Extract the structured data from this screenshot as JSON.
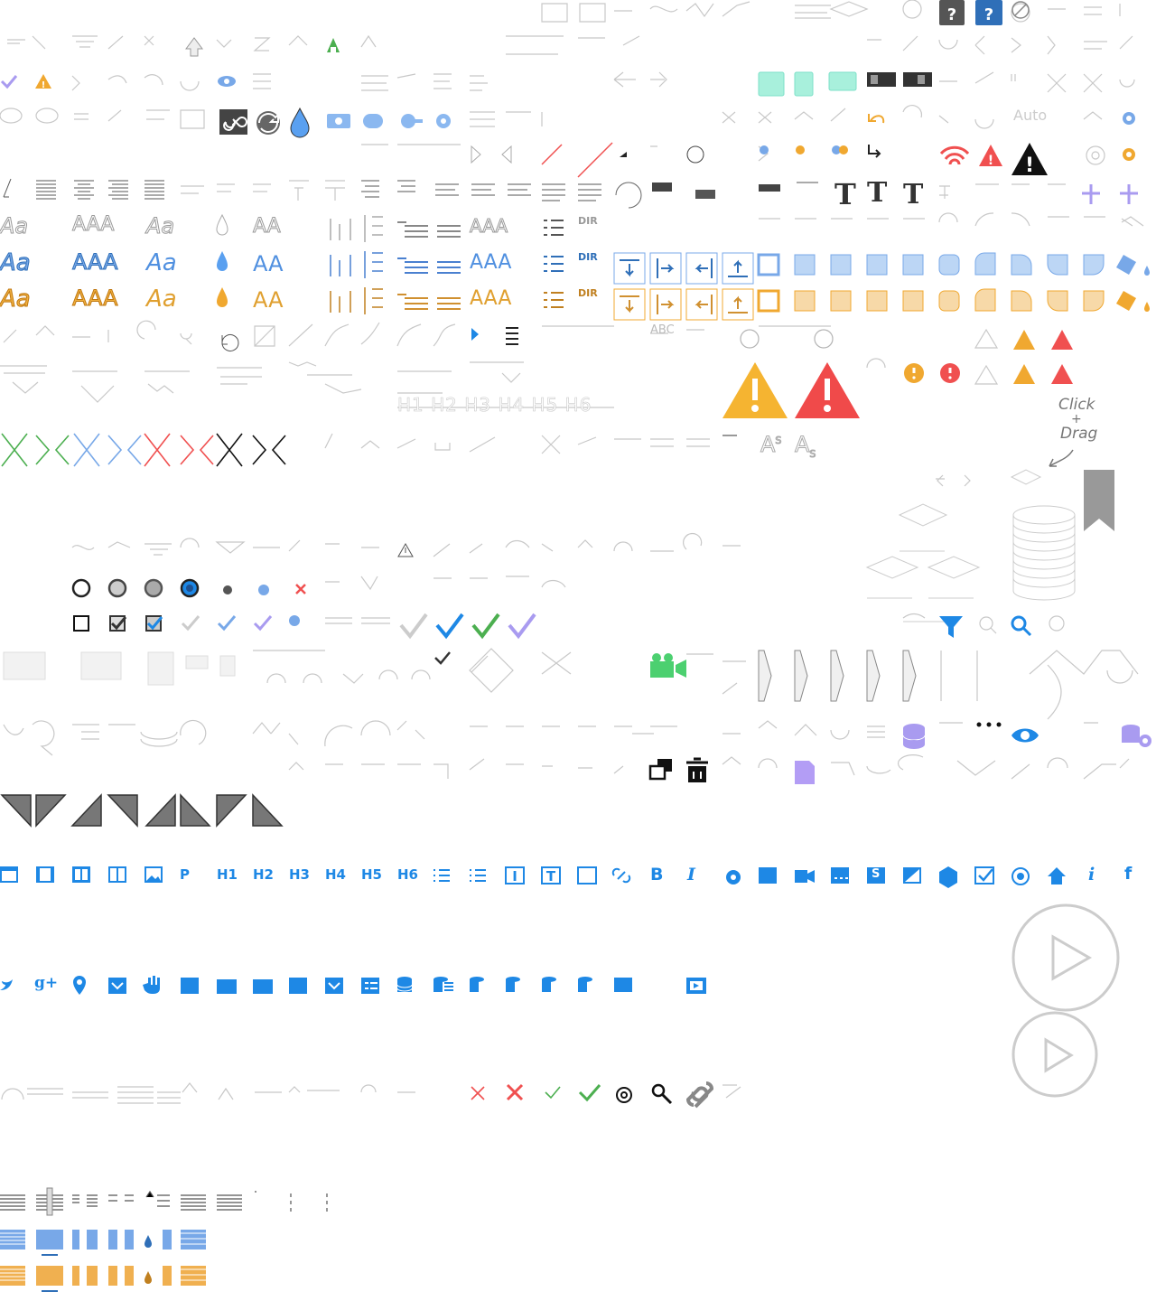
{
  "help_badges": {
    "dark": "?",
    "blue": "?"
  },
  "auto_label": "Auto",
  "dir_label": "DIR",
  "abc_label": "ABC",
  "heading_tool_label": "H1 H2 H3 H4 H5 H6",
  "text_style_glyphs": {
    "aa": "Aa",
    "aaa": "AAA",
    "aa2": "AA",
    "t": "T"
  },
  "superscript_sample": {
    "base": "A",
    "sup": "S"
  },
  "subscript_sample": {
    "base": "A",
    "sub": "S"
  },
  "click_drag": {
    "line1": "Click",
    "line2": "+",
    "line3": "Drag"
  },
  "blue_toolbar": {
    "paragraph": "P",
    "headings": [
      "H1",
      "H2",
      "H3",
      "H4",
      "H5",
      "H6"
    ],
    "bold": "B",
    "italic": "I",
    "info": "i",
    "facebook": "f",
    "google_plus": "g+",
    "s_badge": "S"
  },
  "icons_row1": [
    "grid-dots-icon",
    "chevron-icon",
    "up-arrow-icon",
    "checkmark-icon",
    "warning-icon",
    "refresh-icon",
    "eye-icon",
    "infinity-icon",
    "sync-icon",
    "water-drop-icon"
  ],
  "colors": {
    "blue": "#1e88e5",
    "light_blue": "#78a8e8",
    "orange": "#f0a830",
    "red": "#f05050",
    "green": "#4caf50",
    "purple": "#a99bf0",
    "gray": "#c8c8c8",
    "teal": "#7ee0c8"
  }
}
